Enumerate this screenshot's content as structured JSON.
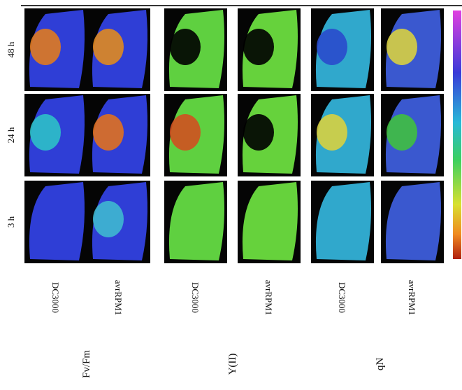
{
  "rows": [
    "48 h",
    "24 h",
    "3 h"
  ],
  "columns": [
    "DC3000",
    "avrRPM1",
    "DC3000",
    "avrRPM1",
    "DC3000",
    "avrRPM1"
  ],
  "groups": [
    "Fv/Fm",
    "Y(II)",
    "qN"
  ]
}
